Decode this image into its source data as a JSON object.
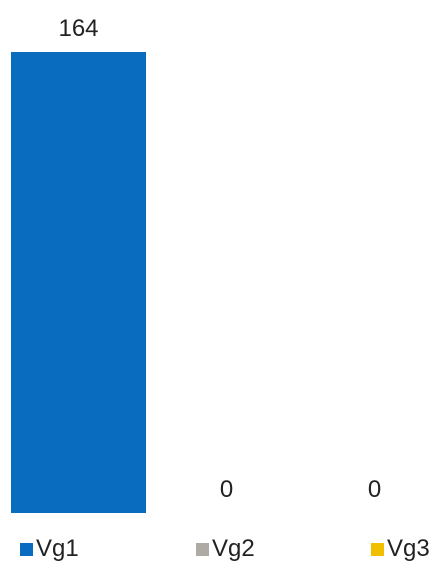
{
  "chart_data": {
    "type": "bar",
    "categories": [
      "Vg1",
      "Vg2",
      "Vg3"
    ],
    "values": [
      164,
      0,
      0
    ],
    "colors": [
      "#0a6cbf",
      "#aeaaa4",
      "#f0c000"
    ],
    "data_labels": [
      "164",
      "0",
      "0"
    ],
    "ylim": [
      0,
      164
    ],
    "grid": false,
    "legend": {
      "position": "bottom",
      "entries": [
        "Vg1",
        "Vg2",
        "Vg3"
      ]
    }
  }
}
